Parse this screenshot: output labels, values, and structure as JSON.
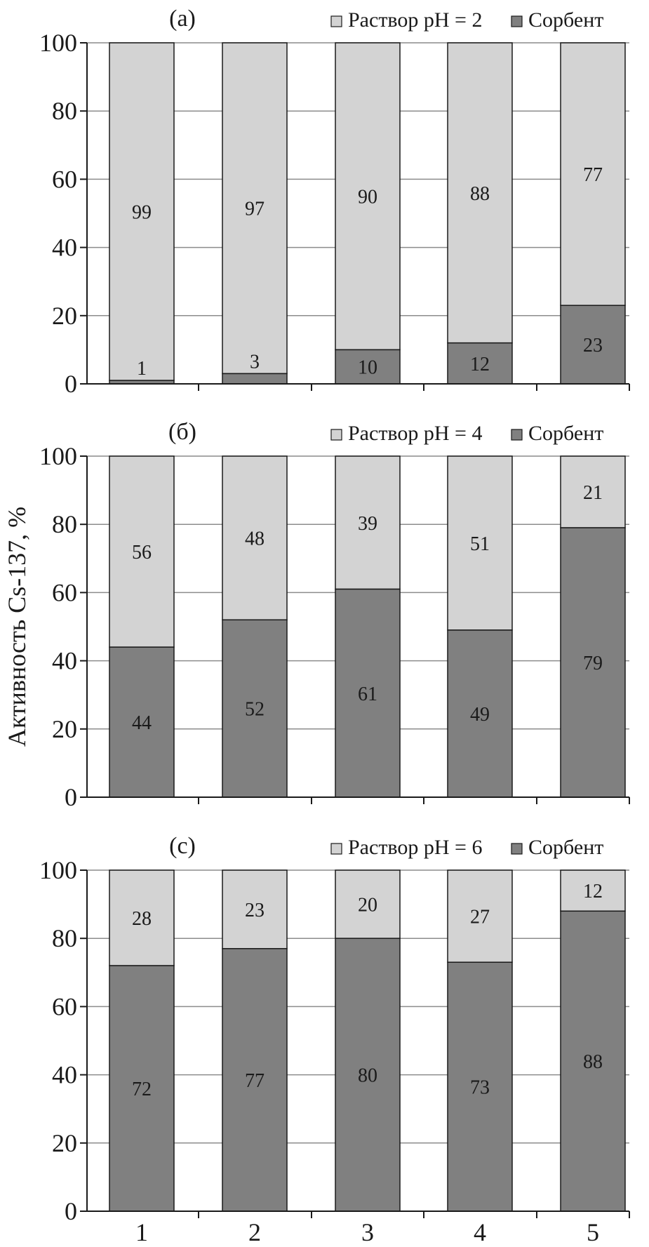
{
  "ylabel": "Активность Cs-137, %",
  "colors": {
    "solution": "#d3d3d3",
    "sorbent": "#808080",
    "axis": "#1a1a1a",
    "grid": "#8c8c8c"
  },
  "chart_data": [
    {
      "type": "bar",
      "stacked": true,
      "panel_label": "(a)",
      "categories": [
        "1",
        "2",
        "3",
        "4",
        "5"
      ],
      "series": [
        {
          "name": "Сорбент",
          "values": [
            1,
            3,
            10,
            12,
            23
          ]
        },
        {
          "name": "Раствор pH = 2",
          "values": [
            99,
            97,
            90,
            88,
            77
          ]
        }
      ],
      "ylim": [
        0,
        100
      ],
      "yticks": [
        "0",
        "20",
        "40",
        "60",
        "80",
        "100"
      ],
      "grid": true,
      "legend": "top-right"
    },
    {
      "type": "bar",
      "stacked": true,
      "panel_label": "(б)",
      "categories": [
        "1",
        "2",
        "3",
        "4",
        "5"
      ],
      "series": [
        {
          "name": "Сорбент",
          "values": [
            44,
            52,
            61,
            49,
            79
          ]
        },
        {
          "name": "Раствор pH = 4",
          "values": [
            56,
            48,
            39,
            51,
            21
          ]
        }
      ],
      "ylim": [
        0,
        100
      ],
      "yticks": [
        "0",
        "20",
        "40",
        "60",
        "80",
        "100"
      ],
      "grid": true,
      "legend": "top-right"
    },
    {
      "type": "bar",
      "stacked": true,
      "panel_label": "(c)",
      "categories": [
        "1",
        "2",
        "3",
        "4",
        "5"
      ],
      "series": [
        {
          "name": "Сорбент",
          "values": [
            72,
            77,
            80,
            73,
            88
          ]
        },
        {
          "name": "Раствор pH = 6",
          "values": [
            28,
            23,
            20,
            27,
            12
          ]
        }
      ],
      "ylim": [
        0,
        100
      ],
      "yticks": [
        "0",
        "20",
        "40",
        "60",
        "80",
        "100"
      ],
      "grid": true,
      "legend": "top-right",
      "xticks": [
        "1",
        "2",
        "3",
        "4",
        "5"
      ]
    }
  ]
}
